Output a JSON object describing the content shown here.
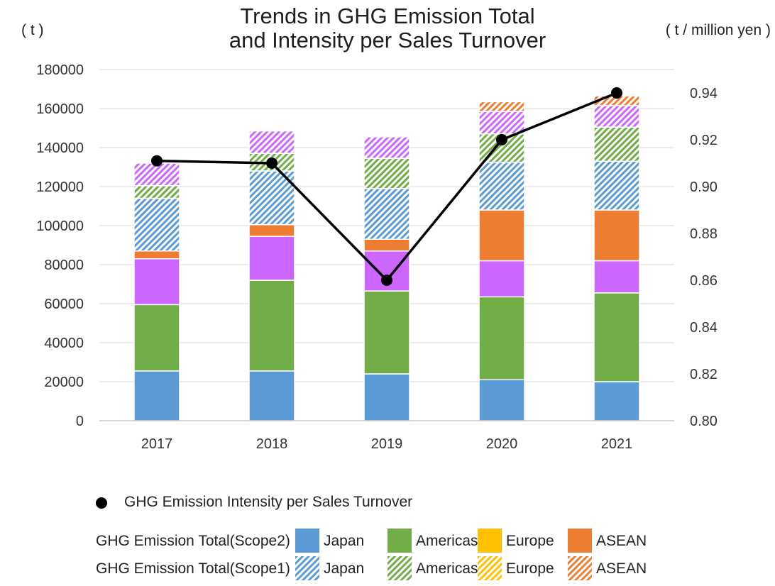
{
  "title_line1": "Trends in GHG Emission Total",
  "title_line2": "and Intensity per Sales Turnover",
  "left_unit": "( t )",
  "right_unit": "( t / million yen )",
  "chart_data": {
    "type": "bar",
    "stacked": true,
    "categories": [
      "2017",
      "2018",
      "2019",
      "2020",
      "2021"
    ],
    "ylim": [
      0,
      180000
    ],
    "yticks": [
      0,
      20000,
      40000,
      60000,
      80000,
      100000,
      120000,
      140000,
      160000,
      180000
    ],
    "y2lim": [
      0.8,
      0.95
    ],
    "y2ticks": [
      "0.80",
      "0.82",
      "0.84",
      "0.86",
      "0.88",
      "0.90",
      "0.92",
      "0.94"
    ],
    "grid": true,
    "series": [
      {
        "group": "GHG Emission Total(Scope2)",
        "name": "Japan",
        "color": "#5b9bd5",
        "pattern": "solid",
        "values": [
          25500,
          25500,
          24000,
          21000,
          20000
        ]
      },
      {
        "group": "GHG Emission Total(Scope2)",
        "name": "Americas",
        "color": "#70ad47",
        "pattern": "solid",
        "values": [
          34000,
          46500,
          42500,
          42500,
          45500
        ]
      },
      {
        "group": "",
        "name": "",
        "color": "#cc66ff",
        "pattern": "solid",
        "values": [
          23500,
          22500,
          20500,
          18500,
          16500
        ]
      },
      {
        "group": "GHG Emission Total(Scope2)",
        "name": "Europe",
        "color": "#ffc000",
        "pattern": "solid",
        "values": [
          0,
          0,
          0,
          0,
          0
        ]
      },
      {
        "group": "GHG Emission Total(Scope2)",
        "name": "ASEAN",
        "color": "#ed7d31",
        "pattern": "solid",
        "values": [
          4000,
          6000,
          6000,
          26000,
          26000
        ]
      },
      {
        "group": "GHG Emission Total(Scope1)",
        "name": "Japan",
        "color": "#5b9bd5",
        "pattern": "hatch",
        "values": [
          27000,
          27500,
          26000,
          24500,
          25000
        ]
      },
      {
        "group": "GHG Emission Total(Scope1)",
        "name": "Americas",
        "color": "#70ad47",
        "pattern": "hatch",
        "values": [
          6500,
          9000,
          15500,
          14500,
          17500
        ]
      },
      {
        "group": "",
        "name": "",
        "color": "#cc66ff",
        "pattern": "hatch",
        "values": [
          11500,
          11500,
          11000,
          11500,
          11000
        ]
      },
      {
        "group": "GHG Emission Total(Scope1)",
        "name": "Europe",
        "color": "#ffc000",
        "pattern": "hatch",
        "values": [
          0,
          0,
          0,
          0,
          0
        ]
      },
      {
        "group": "GHG Emission Total(Scope1)",
        "name": "ASEAN",
        "color": "#ed7d31",
        "pattern": "hatch",
        "values": [
          0,
          0,
          0,
          5000,
          5000
        ]
      }
    ],
    "line_series": {
      "name": "GHG Emission Intensity per Sales Turnover",
      "color": "#000000",
      "axis": "secondary",
      "values": [
        0.911,
        0.91,
        0.86,
        0.92,
        0.94
      ]
    },
    "legend": {
      "line_label": "GHG Emission Intensity per Sales Turnover",
      "scope2_label": "GHG Emission Total(Scope2)",
      "scope1_label": "GHG Emission Total(Scope1)",
      "entries": [
        {
          "label": "Japan",
          "color": "#5b9bd5"
        },
        {
          "label": "Americas",
          "color": "#70ad47"
        },
        {
          "label": "Europe",
          "color": "#ffc000"
        },
        {
          "label": "ASEAN",
          "color": "#ed7d31"
        }
      ]
    }
  }
}
